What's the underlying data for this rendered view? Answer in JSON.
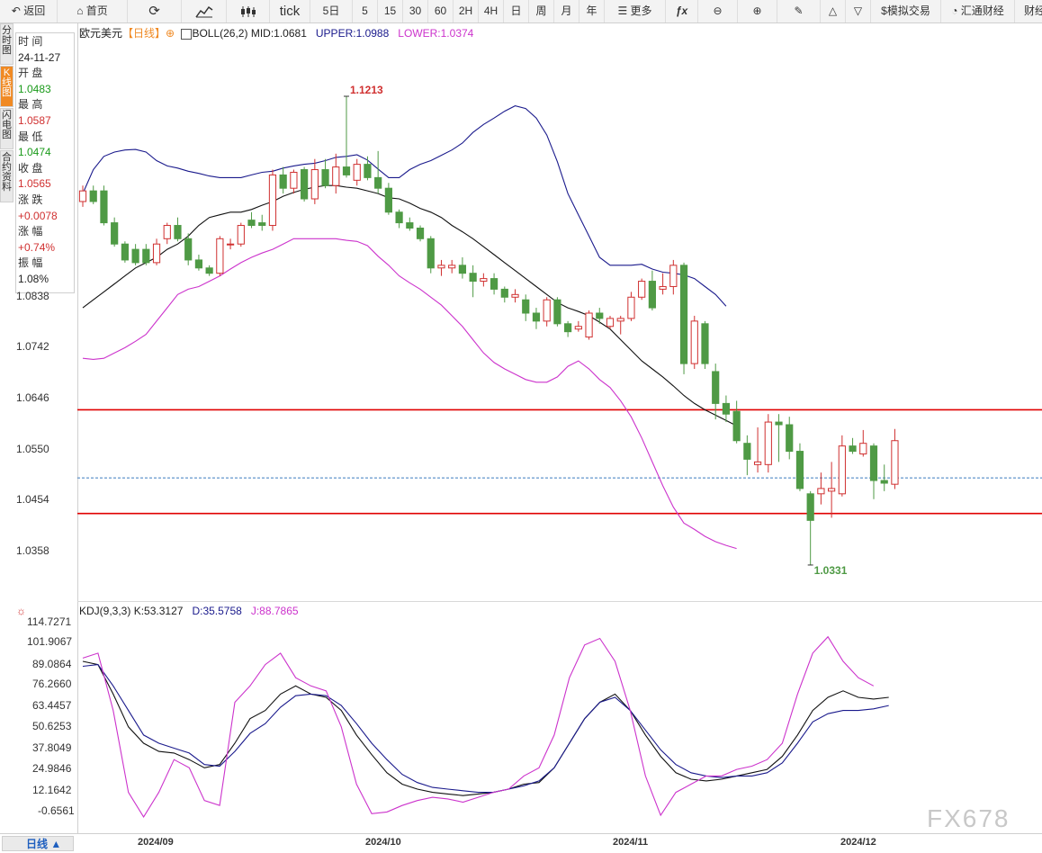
{
  "toolbar": {
    "back": "返回",
    "home": "首页",
    "tick": "tick",
    "d5": "5日",
    "p5": "5",
    "p15": "15",
    "p30": "30",
    "p60": "60",
    "h2": "2H",
    "h4": "4H",
    "day": "日",
    "week": "周",
    "month": "月",
    "year": "年",
    "more": "更多",
    "sim": "模拟交易",
    "fxnews": "汇通财经",
    "fin": "财经"
  },
  "sidetabs": [
    "分时图",
    "K线图",
    "闪电图",
    "合约资料"
  ],
  "info": {
    "time_label": "时 间",
    "time_value": "24-11-27",
    "open_label": "开 盘",
    "open_value": "1.0483",
    "high_label": "最 高",
    "high_value": "1.0587",
    "low_label": "最 低",
    "low_value": "1.0474",
    "close_label": "收 盘",
    "close_value": "1.0565",
    "change_label": "涨 跌",
    "change_value": "+0.0078",
    "pct_label": "涨 幅",
    "pct_value": "+0.74%",
    "amp_label": "振 幅",
    "amp_value": "1.08%"
  },
  "main_legend": {
    "symbol": "欧元美元",
    "period": "【日线】",
    "boll": "BOLL(26,2)",
    "mid": "MID:1.0681",
    "upper": "UPPER:1.0988",
    "lower": "LOWER:1.0374"
  },
  "kdj_legend": {
    "name": "KDJ(9,3,3)",
    "k": "K:53.3127",
    "d": "D:35.5758",
    "j": "J:88.7865"
  },
  "price_ticks": [
    "1.0838",
    "1.0742",
    "1.0646",
    "1.0550",
    "1.0454",
    "1.0358"
  ],
  "kdj_ticks": [
    "114.7271",
    "101.9067",
    "89.0864",
    "76.2660",
    "63.4457",
    "50.6253",
    "37.8049",
    "24.9846",
    "12.1642",
    "-0.6561"
  ],
  "x_ticks": [
    "2024/09",
    "2024/10",
    "2024/11",
    "2024/12"
  ],
  "annotations": {
    "high": "1.1213",
    "low": "1.0331"
  },
  "mode": "日线",
  "watermark": "FX678",
  "colors": {
    "up": "#d03030",
    "down": "#4f9a45",
    "upper": "#1a1a8c",
    "mid": "#111111",
    "lower": "#cc33cc",
    "hline": "#e00000",
    "dash": "#3b7bbf"
  },
  "chart_data": [
    {
      "type": "candlestick",
      "title": "欧元美元 日线",
      "ylim": [
        1.031,
        1.118
      ],
      "horizontal_lines": [
        1.0623,
        1.0428
      ],
      "current_price_line": 1.0495,
      "candles": [
        {
          "o": 1.1015,
          "h": 1.1045,
          "l": 1.1005,
          "c": 1.1035
        },
        {
          "o": 1.1035,
          "h": 1.1045,
          "l": 1.101,
          "c": 1.1015
        },
        {
          "o": 1.1035,
          "h": 1.1045,
          "l": 1.097,
          "c": 1.0975
        },
        {
          "o": 1.0975,
          "h": 1.0985,
          "l": 1.093,
          "c": 1.0935
        },
        {
          "o": 1.0935,
          "h": 1.094,
          "l": 1.09,
          "c": 1.0905
        },
        {
          "o": 1.0925,
          "h": 1.0935,
          "l": 1.0895,
          "c": 1.09
        },
        {
          "o": 1.0925,
          "h": 1.0935,
          "l": 1.0895,
          "c": 1.09
        },
        {
          "o": 1.09,
          "h": 1.0945,
          "l": 1.0895,
          "c": 1.0935
        },
        {
          "o": 1.0945,
          "h": 1.0975,
          "l": 1.0935,
          "c": 1.097
        },
        {
          "o": 1.097,
          "h": 1.0985,
          "l": 1.094,
          "c": 1.0945
        },
        {
          "o": 1.0945,
          "h": 1.0955,
          "l": 1.0895,
          "c": 1.0905
        },
        {
          "o": 1.0905,
          "h": 1.0915,
          "l": 1.0885,
          "c": 1.089
        },
        {
          "o": 1.089,
          "h": 1.0895,
          "l": 1.0875,
          "c": 1.088
        },
        {
          "o": 1.088,
          "h": 1.095,
          "l": 1.0875,
          "c": 1.0945
        },
        {
          "o": 1.0935,
          "h": 1.0945,
          "l": 1.0925,
          "c": 1.0935
        },
        {
          "o": 1.0935,
          "h": 1.0975,
          "l": 1.093,
          "c": 1.097
        },
        {
          "o": 1.098,
          "h": 1.0995,
          "l": 1.0965,
          "c": 1.097
        },
        {
          "o": 1.0975,
          "h": 1.099,
          "l": 1.096,
          "c": 1.097
        },
        {
          "o": 1.097,
          "h": 1.1075,
          "l": 1.096,
          "c": 1.1065
        },
        {
          "o": 1.1065,
          "h": 1.108,
          "l": 1.103,
          "c": 1.104
        },
        {
          "o": 1.104,
          "h": 1.1075,
          "l": 1.103,
          "c": 1.107
        },
        {
          "o": 1.1075,
          "h": 1.108,
          "l": 1.1015,
          "c": 1.102
        },
        {
          "o": 1.102,
          "h": 1.1095,
          "l": 1.101,
          "c": 1.1075
        },
        {
          "o": 1.1075,
          "h": 1.1095,
          "l": 1.104,
          "c": 1.1045
        },
        {
          "o": 1.1045,
          "h": 1.1105,
          "l": 1.103,
          "c": 1.108
        },
        {
          "o": 1.108,
          "h": 1.1213,
          "l": 1.106,
          "c": 1.1065
        },
        {
          "o": 1.1055,
          "h": 1.1095,
          "l": 1.1045,
          "c": 1.1085
        },
        {
          "o": 1.1085,
          "h": 1.11,
          "l": 1.1055,
          "c": 1.106
        },
        {
          "o": 1.106,
          "h": 1.111,
          "l": 1.103,
          "c": 1.104
        },
        {
          "o": 1.104,
          "h": 1.105,
          "l": 1.099,
          "c": 1.0995
        },
        {
          "o": 1.0995,
          "h": 1.1,
          "l": 1.0965,
          "c": 1.0975
        },
        {
          "o": 1.0975,
          "h": 1.0985,
          "l": 1.096,
          "c": 1.0965
        },
        {
          "o": 1.0965,
          "h": 1.097,
          "l": 1.094,
          "c": 1.0945
        },
        {
          "o": 1.0945,
          "h": 1.095,
          "l": 1.088,
          "c": 1.089
        },
        {
          "o": 1.089,
          "h": 1.0905,
          "l": 1.0875,
          "c": 1.0895
        },
        {
          "o": 1.089,
          "h": 1.0905,
          "l": 1.088,
          "c": 1.0895
        },
        {
          "o": 1.0895,
          "h": 1.091,
          "l": 1.087,
          "c": 1.088
        },
        {
          "o": 1.088,
          "h": 1.0895,
          "l": 1.0835,
          "c": 1.0865
        },
        {
          "o": 1.0865,
          "h": 1.088,
          "l": 1.0855,
          "c": 1.087
        },
        {
          "o": 1.087,
          "h": 1.088,
          "l": 1.084,
          "c": 1.085
        },
        {
          "o": 1.085,
          "h": 1.0855,
          "l": 1.0825,
          "c": 1.0835
        },
        {
          "o": 1.0835,
          "h": 1.085,
          "l": 1.0825,
          "c": 1.084
        },
        {
          "o": 1.083,
          "h": 1.084,
          "l": 1.079,
          "c": 1.0805
        },
        {
          "o": 1.0805,
          "h": 1.0815,
          "l": 1.0775,
          "c": 1.079
        },
        {
          "o": 1.079,
          "h": 1.0835,
          "l": 1.078,
          "c": 1.083
        },
        {
          "o": 1.083,
          "h": 1.0835,
          "l": 1.078,
          "c": 1.0785
        },
        {
          "o": 1.0785,
          "h": 1.079,
          "l": 1.076,
          "c": 1.077
        },
        {
          "o": 1.0775,
          "h": 1.079,
          "l": 1.077,
          "c": 1.078
        },
        {
          "o": 1.076,
          "h": 1.081,
          "l": 1.0755,
          "c": 1.0805
        },
        {
          "o": 1.0805,
          "h": 1.0815,
          "l": 1.0785,
          "c": 1.0795
        },
        {
          "o": 1.078,
          "h": 1.08,
          "l": 1.0775,
          "c": 1.0795
        },
        {
          "o": 1.079,
          "h": 1.08,
          "l": 1.0765,
          "c": 1.0795
        },
        {
          "o": 1.0795,
          "h": 1.0845,
          "l": 1.079,
          "c": 1.0835
        },
        {
          "o": 1.0835,
          "h": 1.087,
          "l": 1.083,
          "c": 1.0865
        },
        {
          "o": 1.0865,
          "h": 1.0885,
          "l": 1.081,
          "c": 1.0815
        },
        {
          "o": 1.085,
          "h": 1.088,
          "l": 1.084,
          "c": 1.0855
        },
        {
          "o": 1.0855,
          "h": 1.0905,
          "l": 1.084,
          "c": 1.0895
        },
        {
          "o": 1.0895,
          "h": 1.09,
          "l": 1.069,
          "c": 1.071
        },
        {
          "o": 1.071,
          "h": 1.08,
          "l": 1.07,
          "c": 1.079
        },
        {
          "o": 1.0785,
          "h": 1.079,
          "l": 1.07,
          "c": 1.071
        },
        {
          "o": 1.0695,
          "h": 1.071,
          "l": 1.0605,
          "c": 1.0635
        },
        {
          "o": 1.0635,
          "h": 1.065,
          "l": 1.06,
          "c": 1.0615
        },
        {
          "o": 1.062,
          "h": 1.064,
          "l": 1.056,
          "c": 1.0565
        },
        {
          "o": 1.056,
          "h": 1.0575,
          "l": 1.05,
          "c": 1.053
        },
        {
          "o": 1.052,
          "h": 1.059,
          "l": 1.0505,
          "c": 1.0525
        },
        {
          "o": 1.052,
          "h": 1.0615,
          "l": 1.0505,
          "c": 1.06
        },
        {
          "o": 1.06,
          "h": 1.0615,
          "l": 1.0525,
          "c": 1.0595
        },
        {
          "o": 1.0595,
          "h": 1.061,
          "l": 1.053,
          "c": 1.0545
        },
        {
          "o": 1.0545,
          "h": 1.056,
          "l": 1.047,
          "c": 1.0475
        },
        {
          "o": 1.0465,
          "h": 1.047,
          "l": 1.0331,
          "c": 1.0415
        },
        {
          "o": 1.0465,
          "h": 1.0505,
          "l": 1.0445,
          "c": 1.0475
        },
        {
          "o": 1.047,
          "h": 1.0525,
          "l": 1.042,
          "c": 1.0475
        },
        {
          "o": 1.0465,
          "h": 1.0575,
          "l": 1.046,
          "c": 1.0555
        },
        {
          "o": 1.0555,
          "h": 1.057,
          "l": 1.054,
          "c": 1.0545
        },
        {
          "o": 1.054,
          "h": 1.0585,
          "l": 1.0535,
          "c": 1.056
        },
        {
          "o": 1.0555,
          "h": 1.056,
          "l": 1.0455,
          "c": 1.049
        },
        {
          "o": 1.049,
          "h": 1.052,
          "l": 1.047,
          "c": 1.0485
        },
        {
          "o": 1.0483,
          "h": 1.0587,
          "l": 1.0474,
          "c": 1.0565
        }
      ],
      "boll_upper": [
        1.103,
        1.1075,
        1.11,
        1.1108,
        1.1112,
        1.1113,
        1.1108,
        1.1092,
        1.1082,
        1.1078,
        1.1072,
        1.1068,
        1.1063,
        1.106,
        1.106,
        1.106,
        1.1065,
        1.107,
        1.1072,
        1.1078,
        1.1082,
        1.1085,
        1.1087,
        1.1092,
        1.1098,
        1.11,
        1.1103,
        1.1093,
        1.1076,
        1.106,
        1.106,
        1.1075,
        1.1085,
        1.1092,
        1.1102,
        1.1112,
        1.1125,
        1.1145,
        1.116,
        1.1172,
        1.1185,
        1.1195,
        1.119,
        1.1172,
        1.114,
        1.109,
        1.103,
        1.099,
        1.095,
        1.091,
        1.0895,
        1.0895,
        1.0895,
        1.0897,
        1.0888,
        1.0882,
        1.088,
        1.0877,
        1.087,
        1.0855,
        1.084,
        1.0818
      ],
      "boll_mid": [
        1.0815,
        1.083,
        1.0845,
        1.086,
        1.0875,
        1.089,
        1.09,
        1.091,
        1.0925,
        1.0935,
        1.095,
        1.097,
        1.0985,
        1.099,
        1.0995,
        1.0995,
        1.1,
        1.1008,
        1.1015,
        1.1025,
        1.1032,
        1.1038,
        1.1042,
        1.1045,
        1.1045,
        1.1042,
        1.104,
        1.1035,
        1.103,
        1.1022,
        1.102,
        1.1012,
        1.1002,
        1.0995,
        1.0985,
        1.097,
        1.0958,
        1.0945,
        1.093,
        1.0915,
        1.09,
        1.0885,
        1.087,
        1.0855,
        1.084,
        1.0825,
        1.0815,
        1.0808,
        1.08,
        1.0788,
        1.0775,
        1.0755,
        1.0735,
        1.0715,
        1.07,
        1.0685,
        1.0668,
        1.065,
        1.0635,
        1.0623,
        1.0613,
        1.0603,
        1.0593
      ],
      "boll_lower": [
        1.072,
        1.0718,
        1.072,
        1.073,
        1.074,
        1.0752,
        1.0765,
        1.079,
        1.0815,
        1.084,
        1.085,
        1.0855,
        1.0865,
        1.0875,
        1.0888,
        1.09,
        1.091,
        1.0918,
        1.0925,
        1.0935,
        1.0945,
        1.0945,
        1.0945,
        1.0945,
        1.0945,
        1.0942,
        1.094,
        1.0932,
        1.0912,
        1.0895,
        1.0875,
        1.0862,
        1.085,
        1.0835,
        1.082,
        1.08,
        1.078,
        1.0755,
        1.073,
        1.0712,
        1.07,
        1.069,
        1.068,
        1.0675,
        1.0675,
        1.0685,
        1.0705,
        1.0715,
        1.07,
        1.068,
        1.0665,
        1.064,
        1.061,
        1.057,
        1.0525,
        1.048,
        1.044,
        1.041,
        1.0398,
        1.0385,
        1.0375,
        1.0368,
        1.0362
      ]
    },
    {
      "type": "line",
      "title": "KDJ(9,3,3)",
      "ylim": [
        -6.0,
        117.0
      ],
      "series": [
        {
          "name": "K",
          "values": [
            90,
            88,
            70,
            50,
            40,
            35,
            34,
            30,
            25,
            27,
            40,
            55,
            60,
            70,
            75,
            70,
            68,
            60,
            45,
            33,
            22,
            15,
            12,
            10,
            9,
            8,
            9,
            10,
            12,
            15,
            16,
            25,
            40,
            55,
            65,
            70,
            60,
            45,
            32,
            22,
            18,
            17,
            18,
            20,
            22,
            24,
            32,
            45,
            60,
            68,
            72,
            68,
            67,
            68
          ]
        },
        {
          "name": "D",
          "values": [
            87,
            88,
            75,
            60,
            45,
            40,
            37,
            34,
            27,
            26,
            35,
            46,
            52,
            62,
            69,
            70,
            69,
            63,
            52,
            40,
            30,
            21,
            16,
            13,
            12,
            11,
            10,
            10,
            12,
            14,
            17,
            25,
            40,
            55,
            65,
            68,
            60,
            48,
            36,
            27,
            22,
            20,
            19,
            20,
            20,
            22,
            28,
            40,
            53,
            58,
            60,
            60,
            61,
            63
          ]
        },
        {
          "name": "J",
          "values": [
            92,
            95,
            60,
            10,
            -5,
            10,
            30,
            25,
            5,
            2,
            65,
            75,
            88,
            95,
            80,
            75,
            72,
            50,
            15,
            -3,
            -2,
            2,
            5,
            7,
            6,
            4,
            7,
            10,
            12,
            20,
            25,
            45,
            80,
            100,
            104,
            90,
            60,
            20,
            -4,
            10,
            15,
            20,
            20,
            24,
            26,
            30,
            40,
            70,
            95,
            105,
            90,
            80,
            75
          ]
        }
      ]
    }
  ]
}
